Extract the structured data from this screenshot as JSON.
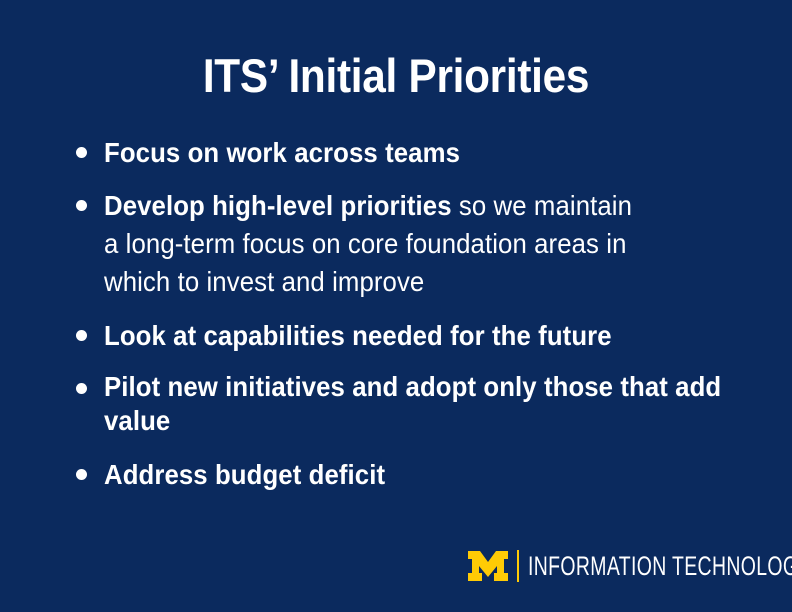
{
  "slide": {
    "title": "ITS’ Initial Priorities",
    "bullets": [
      {
        "bold": "Focus on work across teams",
        "rest": ""
      },
      {
        "bold": "Develop high-level priorities",
        "rest": " so we maintain a long-term focus on core foundation areas in which to invest and improve"
      },
      {
        "bold": "Look at capabilities needed for the future",
        "rest": ""
      },
      {
        "bold": "Pilot new initiatives and adopt only those that add value",
        "rest": ""
      },
      {
        "bold": "Address budget deficit",
        "rest": ""
      }
    ]
  },
  "footer": {
    "logo": "block-m-logo",
    "department": "INFORMATION TECHNOLOGY"
  },
  "colors": {
    "background": "#0b2a5e",
    "text": "#ffffff",
    "accent": "#ffcb05"
  }
}
